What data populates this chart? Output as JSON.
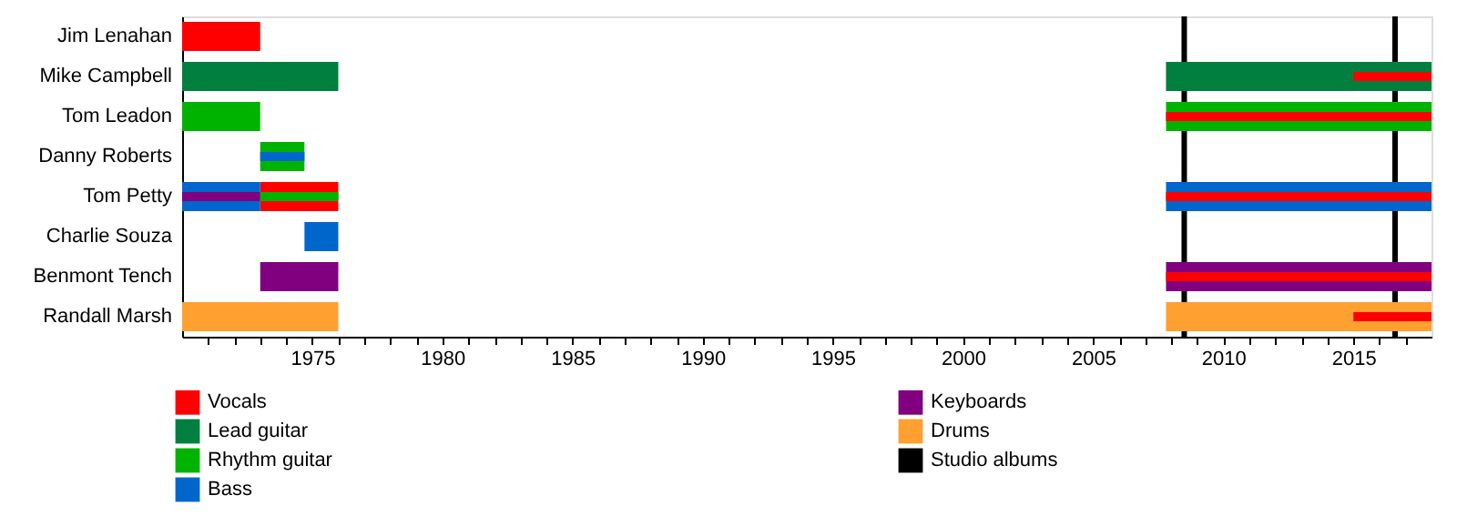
{
  "chart_data": {
    "type": "bar",
    "orientation": "horizontal",
    "categories": [
      "Jim Lenahan",
      "Mike Campbell",
      "Tom Leadon",
      "Danny Roberts",
      "Tom Petty",
      "Charlie Souza",
      "Benmont Tench",
      "Randall Marsh"
    ],
    "series": [
      {
        "name": "Vocals",
        "color": "#ff0000",
        "base": [
          1970,
          null,
          null,
          null,
          1973,
          null,
          null,
          null
        ],
        "values": [
          3,
          null,
          null,
          null,
          3,
          null,
          null,
          null
        ]
      },
      {
        "name": "Lead guitar",
        "color": "#007f3f",
        "base": [
          null,
          1970,
          null,
          null,
          null,
          null,
          null,
          null
        ],
        "values": [
          null,
          6,
          null,
          null,
          null,
          null,
          null,
          null
        ]
      },
      {
        "name": "Rhythm guitar",
        "color": "#00b300",
        "base": [
          null,
          null,
          1970,
          1973,
          null,
          null,
          null,
          null
        ],
        "values": [
          null,
          null,
          3,
          1.7,
          null,
          null,
          null,
          null
        ]
      },
      {
        "name": "Bass",
        "color": "#0066cc",
        "base": [
          null,
          null,
          null,
          null,
          1970,
          1974.7,
          null,
          null
        ],
        "values": [
          null,
          null,
          null,
          null,
          3,
          1.3,
          null,
          null
        ]
      },
      {
        "name": "Keyboards",
        "color": "#800080",
        "base": [
          null,
          null,
          null,
          null,
          null,
          null,
          1973,
          null
        ],
        "values": [
          null,
          null,
          null,
          null,
          null,
          null,
          3,
          null
        ]
      },
      {
        "name": "Drums",
        "color": "#ffa030",
        "base": [
          null,
          null,
          null,
          null,
          null,
          null,
          null,
          1970
        ],
        "values": [
          null,
          null,
          null,
          null,
          null,
          null,
          null,
          6
        ]
      },
      {
        "color": "#007f3f",
        "base": [
          null,
          2007.8,
          null,
          null,
          null,
          null,
          null,
          null
        ],
        "values": [
          null,
          10.2,
          null,
          null,
          null,
          null,
          null,
          null
        ]
      },
      {
        "color": "#00b300",
        "base": [
          null,
          null,
          2007.8,
          null,
          null,
          null,
          null,
          null
        ],
        "values": [
          null,
          null,
          10.2,
          null,
          null,
          null,
          null,
          null
        ]
      },
      {
        "color": "#0066cc",
        "base": [
          null,
          null,
          null,
          null,
          2007.8,
          null,
          null,
          null
        ],
        "values": [
          null,
          null,
          null,
          null,
          10.2,
          null,
          null,
          null
        ]
      },
      {
        "color": "#800080",
        "base": [
          null,
          null,
          null,
          null,
          1970,
          null,
          2007.8,
          null
        ],
        "values": [
          null,
          null,
          null,
          null,
          3,
          null,
          10.2,
          null
        ]
      },
      {
        "color": "#ffa030",
        "base": [
          null,
          null,
          null,
          null,
          null,
          null,
          null,
          2007.8
        ],
        "values": [
          null,
          null,
          null,
          null,
          null,
          null,
          null,
          10.2
        ]
      },
      {
        "color": "#00b300",
        "base": [
          null,
          null,
          null,
          null,
          1973,
          null,
          null,
          null
        ],
        "values": [
          null,
          null,
          null,
          null,
          3,
          null,
          null,
          null
        ]
      },
      {
        "color": "#0066cc",
        "base": [
          null,
          null,
          null,
          1973,
          null,
          null,
          null,
          null
        ],
        "values": [
          null,
          null,
          null,
          1.7,
          null,
          null,
          null,
          null
        ]
      },
      {
        "color": "#ff0000",
        "base": [
          null,
          2015,
          2007.8,
          null,
          2007.8,
          null,
          2007.8,
          2015
        ],
        "values": [
          null,
          3,
          10.2,
          null,
          10.2,
          null,
          10.2,
          3
        ]
      }
    ],
    "ref_lines": [
      {
        "axis": "x",
        "value": 2008.5,
        "label": "Studio albums",
        "color": "#000000"
      },
      {
        "axis": "x",
        "value": 2016.6,
        "label": null,
        "color": "#000000"
      }
    ],
    "xlim": [
      1970,
      2018
    ],
    "xticks": [
      {
        "value": 1971,
        "label": null
      },
      {
        "value": 1972,
        "label": null
      },
      {
        "value": 1973,
        "label": null
      },
      {
        "value": 1974,
        "label": null
      },
      1975,
      {
        "value": 1976,
        "label": null
      },
      {
        "value": 1977,
        "label": null
      },
      {
        "value": 1978,
        "label": null
      },
      {
        "value": 1979,
        "label": null
      },
      1980,
      {
        "value": 1981,
        "label": null
      },
      {
        "value": 1982,
        "label": null
      },
      {
        "value": 1983,
        "label": null
      },
      {
        "value": 1984,
        "label": null
      },
      1985,
      {
        "value": 1986,
        "label": null
      },
      {
        "value": 1987,
        "label": null
      },
      {
        "value": 1988,
        "label": null
      },
      {
        "value": 1989,
        "label": null
      },
      1990,
      {
        "value": 1991,
        "label": null
      },
      {
        "value": 1992,
        "label": null
      },
      {
        "value": 1993,
        "label": null
      },
      {
        "value": 1994,
        "label": null
      },
      1995,
      {
        "value": 1996,
        "label": null
      },
      {
        "value": 1997,
        "label": null
      },
      {
        "value": 1998,
        "label": null
      },
      {
        "value": 1999,
        "label": null
      },
      2000,
      {
        "value": 2001,
        "label": null
      },
      {
        "value": 2002,
        "label": null
      },
      {
        "value": 2003,
        "label": null
      },
      {
        "value": 2004,
        "label": null
      },
      2005,
      {
        "value": 2006,
        "label": null
      },
      {
        "value": 2007,
        "label": null
      },
      {
        "value": 2008,
        "label": null
      },
      {
        "value": 2009,
        "label": null
      },
      2010,
      {
        "value": 2011,
        "label": null
      },
      {
        "value": 2012,
        "label": null
      },
      {
        "value": 2013,
        "label": null
      },
      {
        "value": 2014,
        "label": null
      },
      2015,
      {
        "value": 2016,
        "label": null
      },
      {
        "value": 2017,
        "label": null
      }
    ],
    "grid": false,
    "legend": "bottom left"
  }
}
